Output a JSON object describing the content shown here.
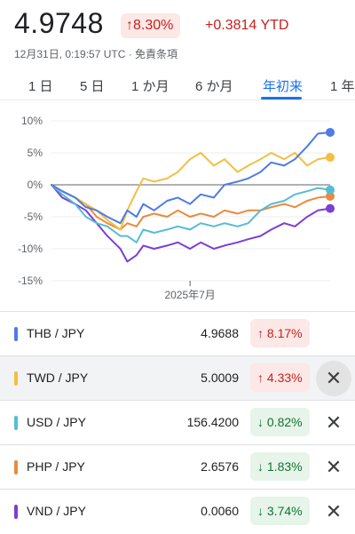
{
  "header": {
    "price": "4.9748",
    "change_pct": "8.30%",
    "ytd_change": "+0.3814 YTD",
    "timestamp": "12月31日, 0:19:57 UTC · 免責条項",
    "change_color": "#c5221f"
  },
  "tabs": [
    {
      "label": "1 日",
      "active": false
    },
    {
      "label": "5 日",
      "active": false
    },
    {
      "label": "1 か月",
      "active": false
    },
    {
      "label": "6 か月",
      "active": false
    },
    {
      "label": "年初来",
      "active": true
    },
    {
      "label": "1 年",
      "active": false
    }
  ],
  "chart_data": {
    "type": "line",
    "ylim": [
      -15,
      10
    ],
    "yticks": [
      "10%",
      "5%",
      "0%",
      "-5%",
      "-10%",
      "-15%"
    ],
    "ytick_values": [
      10,
      5,
      0,
      -5,
      -10,
      -15
    ],
    "x_tick_label": "2025年7月",
    "x_range": [
      "2025-01-01",
      "2025-12-31"
    ],
    "x_tick_date": "2025-07-01",
    "baseline": 0,
    "series": [
      {
        "name": "THB / JPY",
        "color": "#4e7be5",
        "x": [
          "2025-01-01",
          "2025-01-15",
          "2025-02-01",
          "2025-02-15",
          "2025-03-01",
          "2025-03-15",
          "2025-04-01",
          "2025-04-10",
          "2025-04-22",
          "2025-05-01",
          "2025-05-15",
          "2025-06-01",
          "2025-06-15",
          "2025-07-01",
          "2025-07-15",
          "2025-08-01",
          "2025-08-15",
          "2025-09-01",
          "2025-09-15",
          "2025-10-01",
          "2025-10-15",
          "2025-11-01",
          "2025-11-15",
          "2025-12-01",
          "2025-12-15",
          "2025-12-31"
        ],
        "y": [
          0,
          -1,
          -2,
          -3.5,
          -4,
          -5,
          -6,
          -4,
          -5,
          -3,
          -4,
          -2.5,
          -2,
          -3,
          -1.5,
          -2,
          0,
          0.5,
          1,
          2,
          3.5,
          3,
          4,
          6,
          8,
          8.2
        ]
      },
      {
        "name": "TWD / JPY",
        "color": "#f2bf42",
        "x": [
          "2025-01-01",
          "2025-01-15",
          "2025-02-01",
          "2025-02-15",
          "2025-03-01",
          "2025-03-15",
          "2025-04-01",
          "2025-04-10",
          "2025-04-22",
          "2025-05-01",
          "2025-05-15",
          "2025-06-01",
          "2025-06-15",
          "2025-07-01",
          "2025-07-15",
          "2025-08-01",
          "2025-08-15",
          "2025-09-01",
          "2025-09-15",
          "2025-10-01",
          "2025-10-15",
          "2025-11-01",
          "2025-11-15",
          "2025-12-01",
          "2025-12-15",
          "2025-12-31"
        ],
        "y": [
          0,
          -1,
          -2,
          -3,
          -4,
          -5.5,
          -7,
          -4,
          -1,
          1,
          0.5,
          1,
          2,
          4,
          5,
          3,
          4,
          2,
          3,
          4,
          5,
          4,
          5,
          3,
          4,
          4.3
        ]
      },
      {
        "name": "USD / JPY",
        "color": "#56bcd6",
        "x": [
          "2025-01-01",
          "2025-01-15",
          "2025-02-01",
          "2025-02-15",
          "2025-03-01",
          "2025-03-15",
          "2025-04-01",
          "2025-04-10",
          "2025-04-22",
          "2025-05-01",
          "2025-05-15",
          "2025-06-01",
          "2025-06-15",
          "2025-07-01",
          "2025-07-15",
          "2025-08-01",
          "2025-08-15",
          "2025-09-01",
          "2025-09-15",
          "2025-10-01",
          "2025-10-15",
          "2025-11-01",
          "2025-11-15",
          "2025-12-01",
          "2025-12-15",
          "2025-12-31"
        ],
        "y": [
          0,
          -1.5,
          -3,
          -5,
          -6,
          -6.5,
          -8,
          -8,
          -9,
          -7,
          -7.5,
          -7,
          -6.5,
          -7,
          -6,
          -6.5,
          -6,
          -6.5,
          -6,
          -4,
          -3,
          -2.5,
          -1.5,
          -1,
          -0.5,
          -0.8
        ]
      },
      {
        "name": "PHP / JPY",
        "color": "#ea8a3d",
        "x": [
          "2025-01-01",
          "2025-01-15",
          "2025-02-01",
          "2025-02-15",
          "2025-03-01",
          "2025-03-15",
          "2025-04-01",
          "2025-04-10",
          "2025-04-22",
          "2025-05-01",
          "2025-05-15",
          "2025-06-01",
          "2025-06-15",
          "2025-07-01",
          "2025-07-15",
          "2025-08-01",
          "2025-08-15",
          "2025-09-01",
          "2025-09-15",
          "2025-10-01",
          "2025-10-15",
          "2025-11-01",
          "2025-11-15",
          "2025-12-01",
          "2025-12-15",
          "2025-12-31"
        ],
        "y": [
          0,
          -1,
          -2,
          -3,
          -5,
          -6,
          -7,
          -6,
          -6.5,
          -5,
          -4.5,
          -5,
          -4,
          -5,
          -4.5,
          -5,
          -4,
          -4.5,
          -4,
          -4,
          -3.5,
          -3,
          -3.5,
          -2.5,
          -2,
          -1.8
        ]
      },
      {
        "name": "VND / JPY",
        "color": "#7b3fd3",
        "x": [
          "2025-01-01",
          "2025-01-15",
          "2025-02-01",
          "2025-02-15",
          "2025-03-01",
          "2025-03-15",
          "2025-04-01",
          "2025-04-10",
          "2025-04-22",
          "2025-05-01",
          "2025-05-15",
          "2025-06-01",
          "2025-06-15",
          "2025-07-01",
          "2025-07-15",
          "2025-08-01",
          "2025-08-15",
          "2025-09-01",
          "2025-09-15",
          "2025-10-01",
          "2025-10-15",
          "2025-11-01",
          "2025-11-15",
          "2025-12-01",
          "2025-12-15",
          "2025-12-31"
        ],
        "y": [
          0,
          -2,
          -3,
          -4,
          -6,
          -8,
          -10,
          -12,
          -11,
          -9.5,
          -10,
          -9.5,
          -9,
          -10,
          -9,
          -10,
          -9.5,
          -9,
          -8.5,
          -8,
          -7,
          -6,
          -6.5,
          -5,
          -4,
          -3.7
        ]
      }
    ]
  },
  "pairs": [
    {
      "name": "THB / JPY",
      "value": "4.9688",
      "change": "8.17%",
      "dir": "up",
      "arrow": "↑",
      "color": "#4e7be5",
      "removable": false,
      "highlight": false
    },
    {
      "name": "TWD / JPY",
      "value": "5.0009",
      "change": "4.33%",
      "dir": "up",
      "arrow": "↑",
      "color": "#f2bf42",
      "removable": true,
      "highlight": true
    },
    {
      "name": "USD / JPY",
      "value": "156.4200",
      "change": "0.82%",
      "dir": "down",
      "arrow": "↓",
      "color": "#56bcd6",
      "removable": true,
      "highlight": false
    },
    {
      "name": "PHP / JPY",
      "value": "2.6576",
      "change": "1.83%",
      "dir": "down",
      "arrow": "↓",
      "color": "#ea8a3d",
      "removable": true,
      "highlight": false
    },
    {
      "name": "VND / JPY",
      "value": "0.0060",
      "change": "3.74%",
      "dir": "down",
      "arrow": "↓",
      "color": "#7b3fd3",
      "removable": true,
      "highlight": false
    }
  ],
  "icons": {
    "close": "close-icon",
    "up_arrow": "arrow-up-icon",
    "down_arrow": "arrow-down-icon"
  }
}
